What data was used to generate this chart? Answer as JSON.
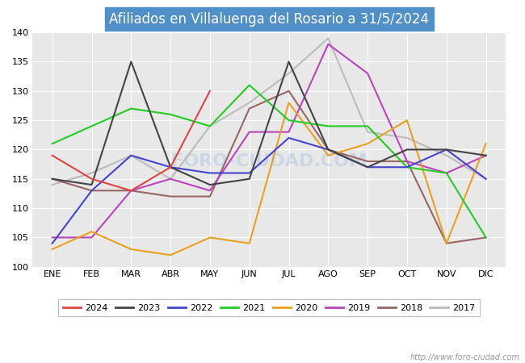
{
  "title": "Afiliados en Villaluenga del Rosario a 31/5/2024",
  "ylim": [
    100,
    140
  ],
  "yticks": [
    100,
    105,
    110,
    115,
    120,
    125,
    130,
    135,
    140
  ],
  "months": [
    "ENE",
    "FEB",
    "MAR",
    "ABR",
    "MAY",
    "JUN",
    "JUL",
    "AGO",
    "SEP",
    "OCT",
    "NOV",
    "DIC"
  ],
  "plot_bg": "#e8e8e8",
  "title_bg": "#5090c8",
  "watermark": "http://www.foro-ciudad.com",
  "series": {
    "2024": {
      "color": "#dd4444",
      "data": [
        119,
        115,
        113,
        117,
        130,
        null,
        null,
        null,
        null,
        null,
        null,
        null
      ]
    },
    "2023": {
      "color": "#444444",
      "data": [
        115,
        114,
        135,
        117,
        114,
        115,
        135,
        120,
        117,
        120,
        120,
        119
      ]
    },
    "2022": {
      "color": "#4444cc",
      "data": [
        104,
        113,
        119,
        117,
        116,
        116,
        122,
        120,
        117,
        117,
        120,
        115
      ]
    },
    "2021": {
      "color": "#22cc22",
      "data": [
        121,
        124,
        127,
        126,
        124,
        131,
        125,
        124,
        124,
        117,
        116,
        105
      ]
    },
    "2020": {
      "color": "#e8a020",
      "data": [
        103,
        106,
        103,
        102,
        105,
        104,
        128,
        119,
        121,
        125,
        104,
        121
      ]
    },
    "2019": {
      "color": "#bb44bb",
      "data": [
        105,
        105,
        113,
        115,
        113,
        123,
        123,
        138,
        133,
        118,
        116,
        119
      ]
    },
    "2018": {
      "color": "#996666",
      "data": [
        115,
        113,
        113,
        112,
        112,
        127,
        130,
        120,
        118,
        118,
        104,
        105
      ]
    },
    "2017": {
      "color": "#bbbbbb",
      "data": [
        114,
        116,
        119,
        115,
        124,
        128,
        133,
        139,
        123,
        122,
        119,
        115
      ]
    }
  },
  "legend_years": [
    "2024",
    "2023",
    "2022",
    "2021",
    "2020",
    "2019",
    "2018",
    "2017"
  ]
}
